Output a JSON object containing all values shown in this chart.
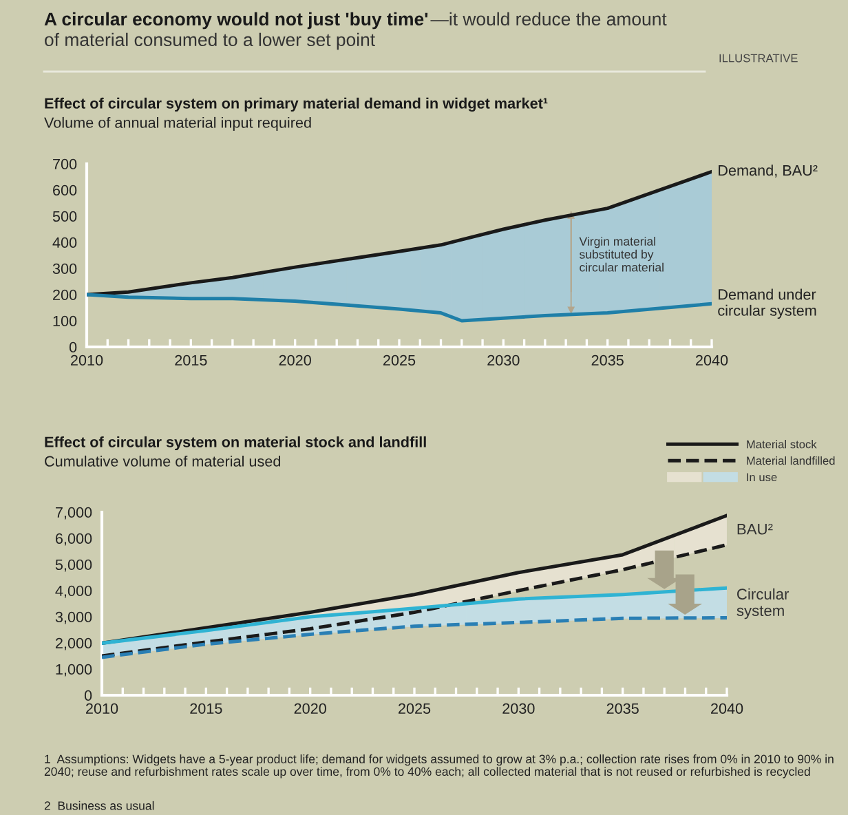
{
  "chart_data": [
    {
      "type": "line",
      "title": "Effect of circular system on primary material demand in widget market¹",
      "subtitle": "Volume of annual material input required",
      "x": [
        2010,
        2012,
        2015,
        2017,
        2020,
        2025,
        2027,
        2028,
        2030,
        2032,
        2035,
        2040
      ],
      "series": [
        {
          "name": "Demand, BAU²",
          "color": "#1a1a1a",
          "values": [
            200,
            210,
            245,
            265,
            305,
            365,
            390,
            410,
            450,
            485,
            530,
            670
          ]
        },
        {
          "name": "Demand under\ncircular system",
          "color": "#1f7fa8",
          "values": [
            200,
            190,
            185,
            185,
            175,
            145,
            130,
            100,
            110,
            120,
            130,
            165
          ],
          "lower": [
            200,
            190,
            185,
            185,
            175,
            145,
            130,
            100,
            110,
            120,
            130,
            165
          ],
          "upper": [
            200,
            210,
            245,
            265,
            305,
            365,
            390,
            410,
            450,
            485,
            530,
            670
          ],
          "colors": [
            "#a9cbd6",
            "#a9cbd6",
            "#a9cbd6",
            "#a9cbd6",
            "#a9cbd6",
            "#a9cbd6",
            "#a9cbd6",
            "#a9cbd6",
            "#a9cbd6",
            "#a9cbd6",
            "#a9cbd6",
            "#a9cbd6"
          ]
        }
      ],
      "xlim": [
        2010,
        2040
      ],
      "xticks": [
        2010,
        2015,
        2020,
        2025,
        2030,
        2035,
        2040
      ],
      "ylim": [
        0,
        700
      ],
      "yticks": [
        0,
        100,
        200,
        300,
        400,
        500,
        600,
        700
      ],
      "grid": false,
      "line_style": "solid",
      "annotations": [
        "A circular economy would not just 'buy time'",
        "—it would reduce the amount",
        "of material consumed to a lower set point",
        "ILLUSTRATIVE",
        "Virgin material\nsubstituted by\ncircular material"
      ]
    },
    {
      "type": "line",
      "title": "Effect of circular system on material stock and landfill",
      "subtitle": "Cumulative volume of material used",
      "x": [
        2010,
        2015,
        2020,
        2025,
        2030,
        2035,
        2040
      ],
      "series": [
        {
          "name": "Material stock",
          "color": "#1a1a1a",
          "line_style": "solid",
          "values": [
            1990,
            2580,
            3170,
            3850,
            4690,
            5370,
            6870
          ],
          "lower": [
            1500,
            2030,
            2540,
            3170,
            4000,
            4800,
            5750
          ],
          "upper": [
            1990,
            2580,
            3170,
            3850,
            4690,
            5370,
            6870
          ],
          "colors": [
            "#e6e1d0",
            "#e6e1d0",
            "#e6e1d0",
            "#e6e1d0",
            "#e6e1d0",
            "#e6e1d0",
            "#e6e1d0"
          ]
        },
        {
          "name": "Material landfilled",
          "color": "#1a1a1a",
          "line_style": "dashed",
          "values": [
            1500,
            2030,
            2540,
            3170,
            4000,
            4800,
            5750
          ]
        },
        {
          "color": "#2fb3d3",
          "line_style": "solid",
          "values": [
            1990,
            2470,
            3000,
            3320,
            3680,
            3850,
            4100
          ],
          "lower": [
            1450,
            1950,
            2330,
            2640,
            2780,
            2940,
            2960
          ],
          "upper": [
            1990,
            2470,
            3000,
            3320,
            3680,
            3850,
            4100
          ],
          "colors": [
            "#c3dde4",
            "#c3dde4",
            "#c3dde4",
            "#c3dde4",
            "#c3dde4",
            "#c3dde4",
            "#c3dde4"
          ]
        },
        {
          "color": "#2a7fb4",
          "line_style": "dashed",
          "values": [
            1450,
            1950,
            2330,
            2640,
            2780,
            2940,
            2960
          ]
        }
      ],
      "xlim": [
        2010,
        2040
      ],
      "xticks": [
        2010,
        2015,
        2020,
        2025,
        2030,
        2035,
        2040
      ],
      "ylim": [
        0,
        7000
      ],
      "yticks": [
        0,
        {
          "value": 1000,
          "label": "1,000"
        },
        {
          "value": 2000,
          "label": "2,000"
        },
        {
          "value": 3000,
          "label": "3,000"
        },
        {
          "value": 4000,
          "label": "4,000"
        },
        {
          "value": 5000,
          "label": "5,000"
        },
        {
          "value": 6000,
          "label": "6,000"
        },
        {
          "value": 7000,
          "label": "7,000"
        }
      ],
      "grid": false,
      "legend": "top right",
      "annotations": [
        {
          "text": "BAU²",
          "x": 2040,
          "y": 6300
        },
        {
          "text": "Circular\nsystem",
          "x": 2040,
          "y": 3500
        },
        "1  Assumptions: Widgets have a 5-year product life; demand for widgets assumed to grow at 3% p.a.; collection rate rises from 0% in 2010 to 90% in 2040; reuse and refurbishment rates scale up over time, from 0% to 40% each; all collected material that is not reused or refurbished is recycled",
        "2  Business as usual",
        "In use"
      ]
    }
  ]
}
